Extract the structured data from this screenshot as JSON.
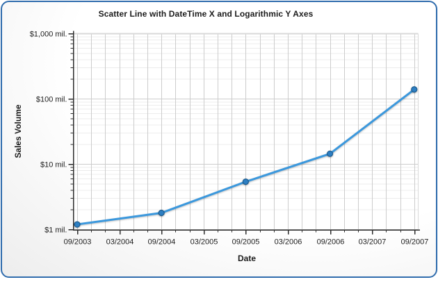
{
  "card": {
    "border_color": "#2f6cad",
    "background_from": "#ffffff",
    "background_to": "#ededed"
  },
  "chart_data": {
    "type": "line",
    "title": "Scatter Line with DateTime X and Logarithmic Y Axes",
    "xlabel": "Date",
    "ylabel": "Sales Volume",
    "y_scale": "log10",
    "ylim": [
      1,
      1000
    ],
    "grid": true,
    "legend": "none",
    "x_tick_labels": [
      "09/2003",
      "03/2004",
      "09/2004",
      "03/2005",
      "09/2005",
      "03/2006",
      "09/2006",
      "03/2007",
      "09/2007"
    ],
    "y_tick_labels": [
      "$1,000 mil.",
      "$100 mil.",
      "$10 mil.",
      "$1 mil."
    ],
    "y_tick_values": [
      1000,
      100,
      10,
      1
    ],
    "x": [
      "09/2003",
      "09/2004",
      "09/2005",
      "09/2006",
      "09/2007"
    ],
    "series": [
      {
        "name": "Sales Volume",
        "values": [
          1.2,
          1.8,
          5.4,
          14.5,
          140
        ]
      }
    ],
    "colors": {
      "line": "#3b98dd",
      "marker_fill": "#2e7fc2",
      "marker_stroke": "#1d5c8f",
      "grid_major": "#cccccc",
      "grid_minor": "#ececec",
      "plot_top_line": "#d9d9d9",
      "axis": "#2b2b2b",
      "plot_fill": "#ffffff"
    }
  }
}
